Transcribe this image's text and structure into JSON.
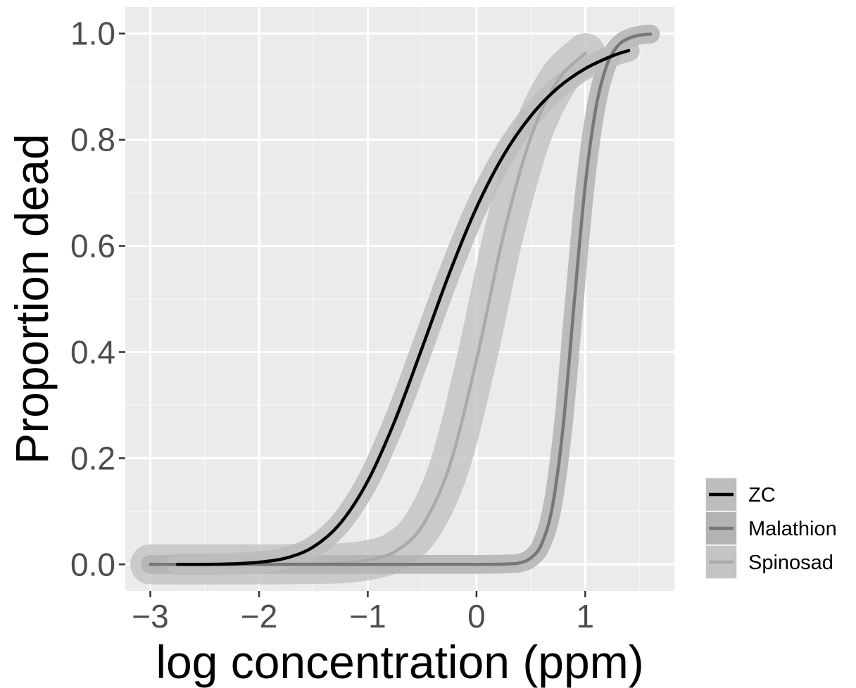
{
  "chart_data": {
    "type": "line",
    "title": "",
    "xlabel": "log concentration (ppm)",
    "ylabel": "Proportion dead",
    "xlim": [
      -3.23,
      1.82
    ],
    "ylim": [
      -0.05,
      1.05
    ],
    "x_ticks": [
      -3,
      -2,
      -1,
      0,
      1
    ],
    "x_tick_labels": [
      "−3",
      "−2",
      "−1",
      "0",
      "1"
    ],
    "y_ticks": [
      0,
      0.2,
      0.4,
      0.6,
      0.8,
      1.0
    ],
    "y_tick_labels": [
      "0.0",
      "0.2",
      "0.4",
      "0.6",
      "0.8",
      "1.0"
    ],
    "grid": true,
    "legend_position": "right",
    "series": [
      {
        "name": "ZC",
        "color": "#000000",
        "band_color": "#bdbdbd",
        "x": [
          -2.75,
          -2.5,
          -2.25,
          -2.0,
          -1.75,
          -1.5,
          -1.25,
          -1.0,
          -0.75,
          -0.5,
          -0.25,
          0.0,
          0.25,
          0.5,
          0.75,
          1.0,
          1.25,
          1.4
        ],
        "y": [
          0.0,
          0.0,
          0.001,
          0.004,
          0.012,
          0.033,
          0.078,
          0.157,
          0.271,
          0.408,
          0.548,
          0.672,
          0.771,
          0.845,
          0.898,
          0.934,
          0.958,
          0.968
        ],
        "band_halfwidth": 0.018
      },
      {
        "name": "Malathion",
        "color": "#777777",
        "band_color": "#b3b3b3",
        "x": [
          -3.0,
          -1.5,
          0.0,
          0.3,
          0.4,
          0.5,
          0.6,
          0.7,
          0.8,
          0.9,
          1.0,
          1.1,
          1.2,
          1.3,
          1.4,
          1.5,
          1.6
        ],
        "y": [
          0.0,
          0.0,
          0.0,
          0.001,
          0.003,
          0.012,
          0.039,
          0.111,
          0.266,
          0.496,
          0.714,
          0.862,
          0.941,
          0.977,
          0.991,
          0.997,
          0.999
        ],
        "band_halfwidth": 0.015
      },
      {
        "name": "Spinosad",
        "color": "#aaaaaa",
        "band_color": "#c4c4c4",
        "x": [
          -3.0,
          -2.0,
          -1.5,
          -1.25,
          -1.0,
          -0.75,
          -0.5,
          -0.25,
          0.0,
          0.25,
          0.5,
          0.75,
          1.0
        ],
        "y": [
          0.0,
          0.0,
          0.001,
          0.002,
          0.008,
          0.024,
          0.072,
          0.184,
          0.385,
          0.622,
          0.805,
          0.912,
          0.963
        ],
        "band_halfwidth": 0.035
      }
    ]
  }
}
